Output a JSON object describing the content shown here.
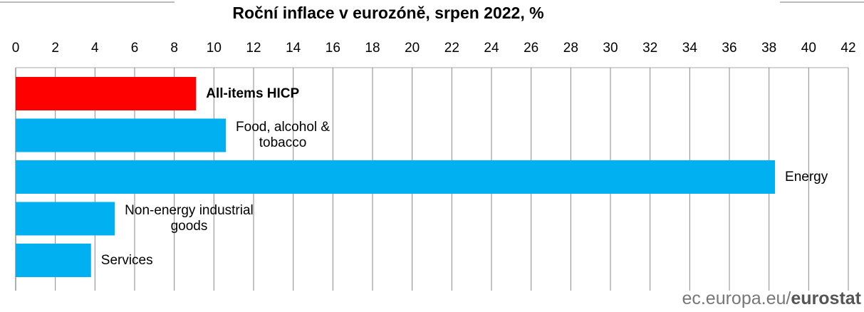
{
  "chart_data": {
    "type": "hbar",
    "title": "Roční inflace v eurozóně, srpen 2022, %",
    "categories": [
      "All-items HICP",
      "Food, alcohol &\ntobacco",
      "Energy",
      "Non-energy industrial\ngoods",
      "Services"
    ],
    "values": [
      9.1,
      10.6,
      38.3,
      5.0,
      3.8
    ],
    "colors": [
      "#ff0000",
      "#00b0f0",
      "#00b0f0",
      "#00b0f0",
      "#00b0f0"
    ],
    "highlight": 0,
    "xlim": [
      0,
      42
    ],
    "xticks": [
      0,
      2,
      4,
      6,
      8,
      10,
      12,
      14,
      16,
      18,
      20,
      22,
      24,
      26,
      28,
      30,
      32,
      34,
      36,
      38,
      40,
      42
    ],
    "grid": true,
    "source": {
      "site": "ec.europa.eu/",
      "brand": "eurostat"
    }
  }
}
